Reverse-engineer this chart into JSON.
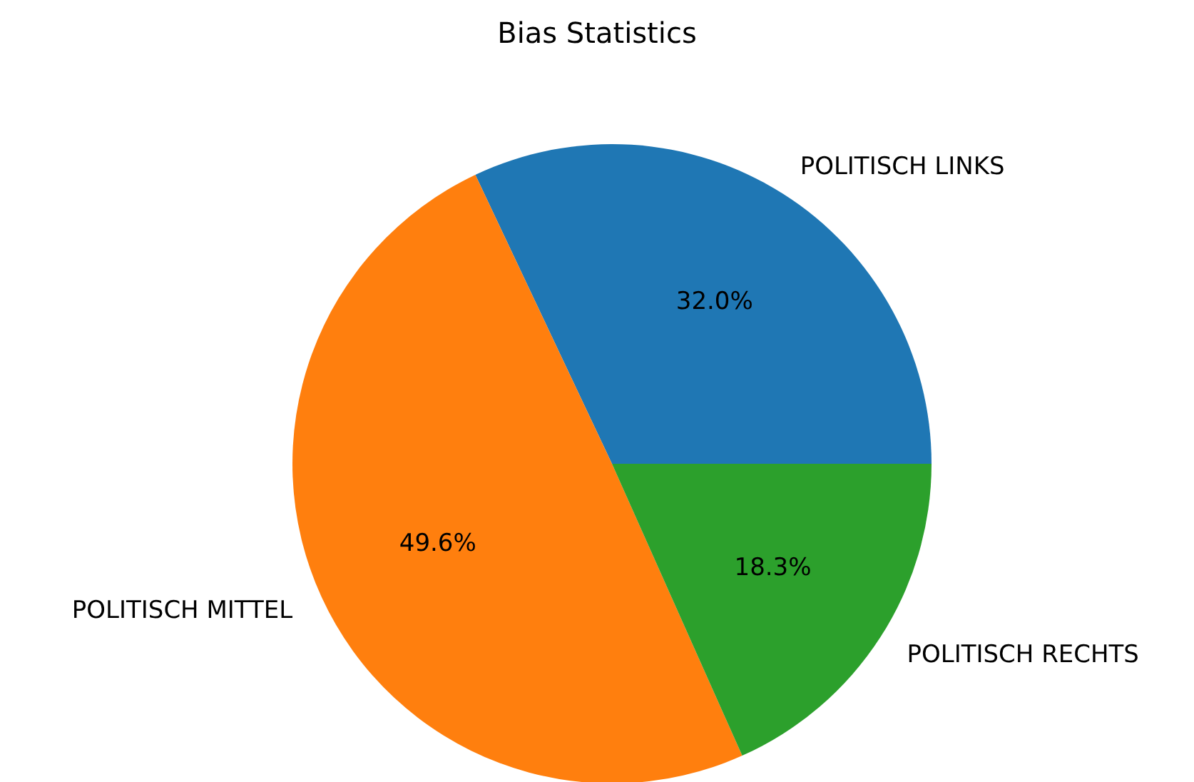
{
  "chart_data": {
    "type": "pie",
    "title": "Bias Statistics",
    "categories": [
      "POLITISCH LINKS",
      "POLITISCH MITTEL",
      "POLITISCH RECHTS"
    ],
    "values": [
      32.0,
      49.6,
      18.3
    ],
    "value_labels": [
      "32.0%",
      "49.6%",
      "18.3%"
    ],
    "colors": [
      "#1f77b4",
      "#ff7f0e",
      "#2ca02c"
    ],
    "legend": false
  }
}
